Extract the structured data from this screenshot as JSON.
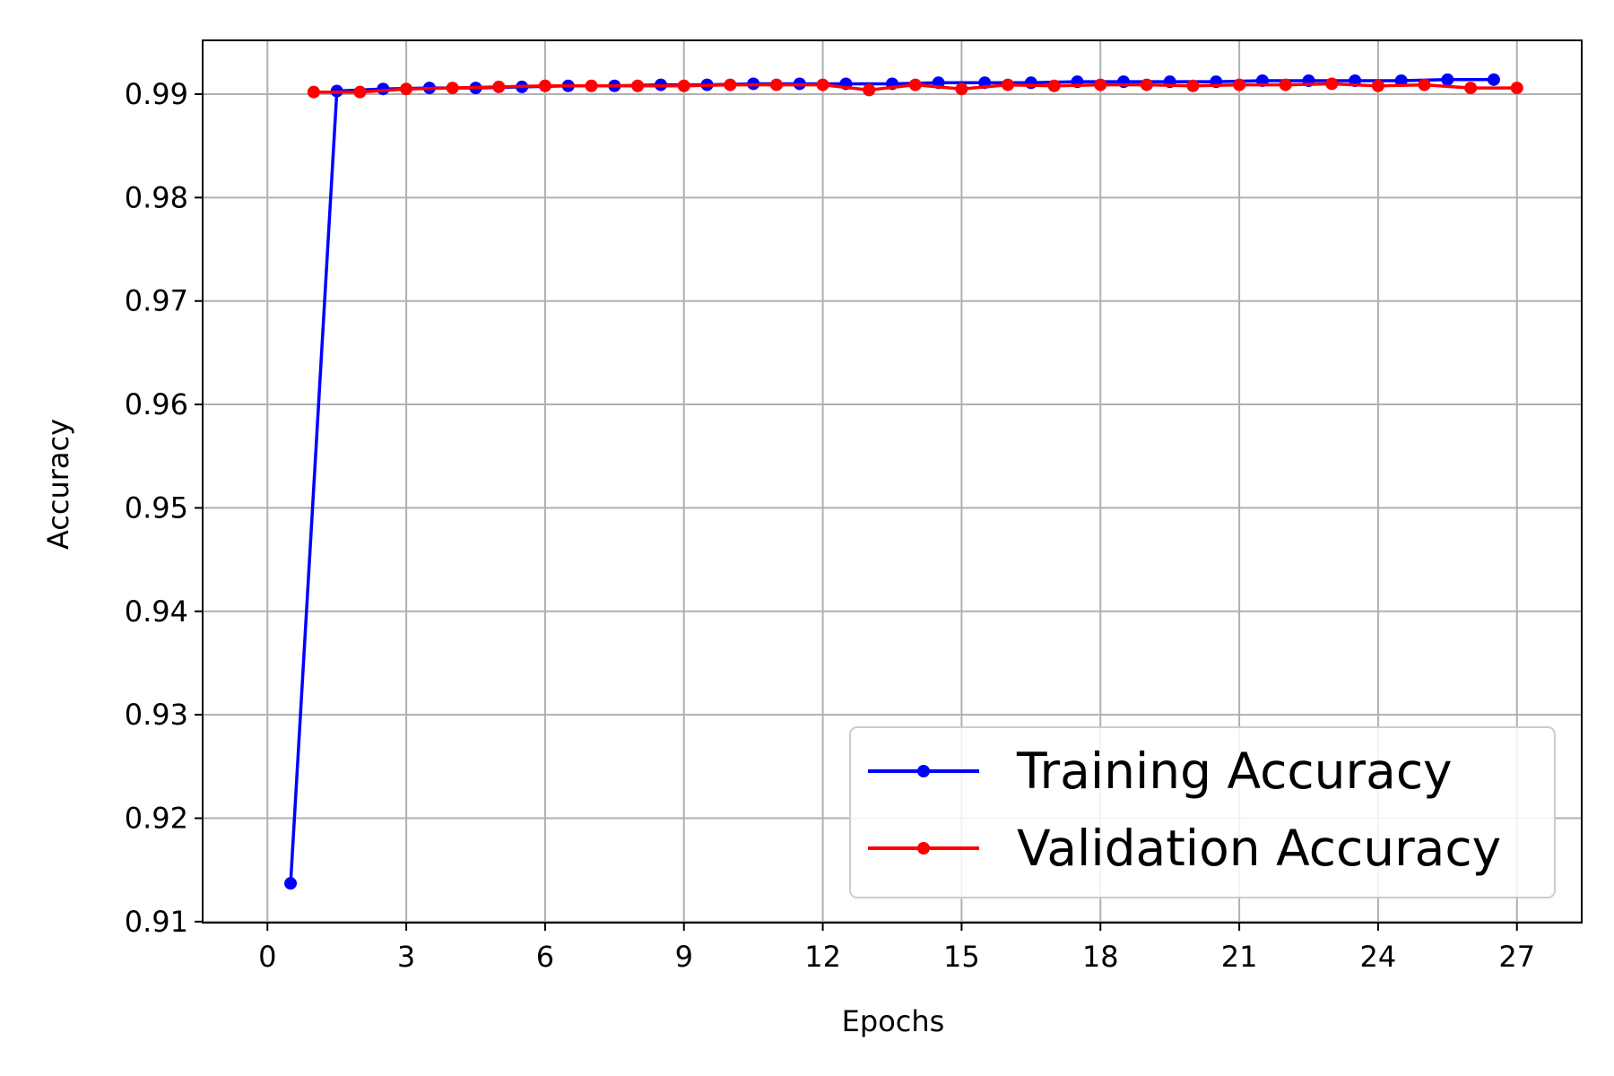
{
  "chart_data": {
    "type": "line",
    "title": "",
    "xlabel": "Epochs",
    "ylabel": "Accuracy",
    "xlim": [
      -1.4,
      28.4
    ],
    "ylim": [
      0.9099,
      0.9952
    ],
    "x_ticks": [
      0,
      3,
      6,
      9,
      12,
      15,
      18,
      21,
      24,
      27
    ],
    "y_ticks": [
      0.91,
      0.92,
      0.93,
      0.94,
      0.95,
      0.96,
      0.97,
      0.98,
      0.99
    ],
    "y_tick_labels": [
      "0.91",
      "0.92",
      "0.93",
      "0.94",
      "0.95",
      "0.96",
      "0.97",
      "0.98",
      "0.99"
    ],
    "grid": true,
    "legend_position": "bottom-right",
    "series": [
      {
        "name": "Training Accuracy",
        "color": "#0000ff",
        "marker": "dot",
        "x": [
          0.5,
          1.5,
          2.5,
          3.5,
          4.5,
          5.5,
          6.5,
          7.5,
          8.5,
          9.5,
          10.5,
          11.5,
          12.5,
          13.5,
          14.5,
          15.5,
          16.5,
          17.5,
          18.5,
          19.5,
          20.5,
          21.5,
          22.5,
          23.5,
          24.5,
          25.5,
          26.5
        ],
        "y": [
          0.9137,
          0.9903,
          0.9905,
          0.9906,
          0.9906,
          0.9907,
          0.9908,
          0.9908,
          0.9909,
          0.9909,
          0.991,
          0.991,
          0.991,
          0.991,
          0.9911,
          0.9911,
          0.9911,
          0.9912,
          0.9912,
          0.9912,
          0.9912,
          0.9913,
          0.9913,
          0.9913,
          0.9913,
          0.9914,
          0.9914
        ]
      },
      {
        "name": "Validation Accuracy",
        "color": "#ff0000",
        "marker": "dot",
        "x": [
          1,
          2,
          3,
          4,
          5,
          6,
          7,
          8,
          9,
          10,
          11,
          12,
          13,
          14,
          15,
          16,
          17,
          18,
          19,
          20,
          21,
          22,
          23,
          24,
          25,
          26,
          27
        ],
        "y": [
          0.9902,
          0.9902,
          0.9905,
          0.9906,
          0.9907,
          0.9908,
          0.9908,
          0.9908,
          0.9908,
          0.9909,
          0.9909,
          0.9909,
          0.9904,
          0.9909,
          0.9905,
          0.9909,
          0.9908,
          0.9909,
          0.9909,
          0.9908,
          0.9909,
          0.9909,
          0.991,
          0.9908,
          0.9909,
          0.9906,
          0.9906
        ]
      }
    ]
  }
}
